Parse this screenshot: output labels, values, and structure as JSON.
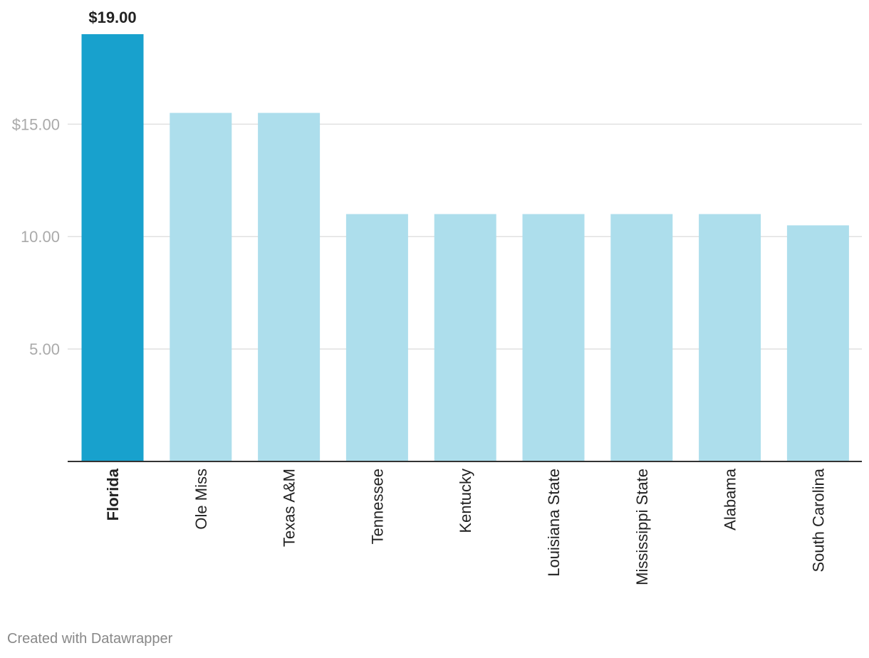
{
  "chart_data": {
    "type": "bar",
    "categories": [
      "Florida",
      "Ole Miss",
      "Texas A&M",
      "Tennessee",
      "Kentucky",
      "Louisiana State",
      "Mississippi State",
      "Alabama",
      "South Carolina"
    ],
    "values": [
      19.0,
      15.5,
      15.5,
      11.0,
      11.0,
      11.0,
      11.0,
      11.0,
      10.5
    ],
    "highlight_category": "Florida",
    "highlight_value_label": "$19.00",
    "yticks": [
      {
        "value": 15,
        "label": "$15.00"
      },
      {
        "value": 10,
        "label": "10.00"
      },
      {
        "value": 5,
        "label": "5.00"
      }
    ],
    "ylim": [
      0,
      19
    ],
    "grid": true,
    "colors": {
      "highlight": "#18a1cd",
      "default": "#addeec",
      "grid": "#e0e0e0",
      "axis": "#333333",
      "tick_label": "#aaaaaa",
      "category_label": "#222222"
    }
  },
  "footer": {
    "credit": "Created with Datawrapper"
  }
}
